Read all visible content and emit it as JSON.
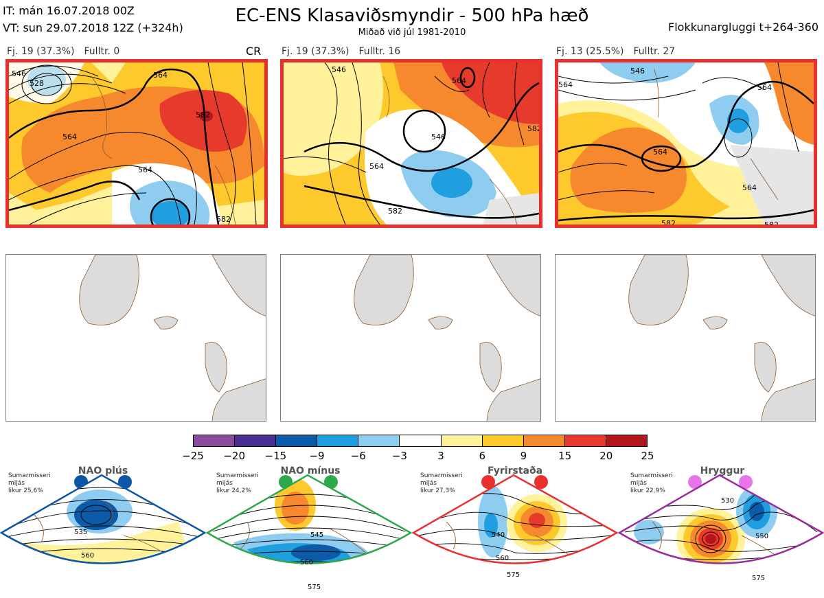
{
  "header": {
    "it_line": "IT: mán 16.07.2018 00Z",
    "vt_line": "VT: sun 29.07.2018 12Z  (+324h)",
    "title": "EC-ENS Klasaviðsmyndir - 500 hPa hæð",
    "subtitle": "Miðað við júl 1981-2010",
    "window": "Flokkunargluggi t+264-360"
  },
  "panels": [
    {
      "fj": "Fj. 19 (37.3%)",
      "fulltr": "Fulltr. 0",
      "tag": "CR",
      "contours": [
        "546",
        "528",
        "564",
        "564",
        "582",
        "564",
        "582"
      ]
    },
    {
      "fj": "Fj. 19 (37.3%)",
      "fulltr": "Fulltr. 16",
      "tag": "",
      "contours": [
        "546",
        "564",
        "546",
        "564",
        "582",
        "582"
      ]
    },
    {
      "fj": "Fj. 13 (25.5%)",
      "fulltr": "Fulltr. 27",
      "tag": "",
      "contours": [
        "546",
        "564",
        "564",
        "564",
        "564",
        "582",
        "582"
      ]
    }
  ],
  "colorbar": {
    "colors": [
      "#8b4c9e",
      "#4a2f93",
      "#0c5ba8",
      "#1f9fe0",
      "#8fcdf0",
      "#ffffff",
      "#fff29a",
      "#fdc92c",
      "#f6892d",
      "#e63a2c",
      "#b2151b"
    ],
    "ticks": [
      "−25",
      "−20",
      "−15",
      "−9",
      "−6",
      "−3",
      "3",
      "6",
      "9",
      "15",
      "20",
      "25"
    ]
  },
  "regimes": [
    {
      "name": "NAO plús",
      "season": "Sumarmisseri",
      "mean": "mijás",
      "prob": "likur 25,6%",
      "color": "#0b56a5",
      "contours": [
        "535",
        "560"
      ]
    },
    {
      "name": "NAO mínus",
      "season": "Sumarmisseri",
      "mean": "mijás",
      "prob": "likur 24,2%",
      "color": "#2ea84a",
      "contours": [
        "545",
        "560",
        "575"
      ]
    },
    {
      "name": "Fyrirstaða",
      "season": "Sumarmisseri",
      "mean": "mijás",
      "prob": "likur 27,3%",
      "color": "#e8312f",
      "contours": [
        "540",
        "560",
        "575"
      ]
    },
    {
      "name": "Hryggur",
      "season": "Sumarmisseri",
      "mean": "mijás",
      "prob": "likur 22,9%",
      "color": "#e476e8",
      "contours": [
        "530",
        "550",
        "575"
      ]
    }
  ]
}
